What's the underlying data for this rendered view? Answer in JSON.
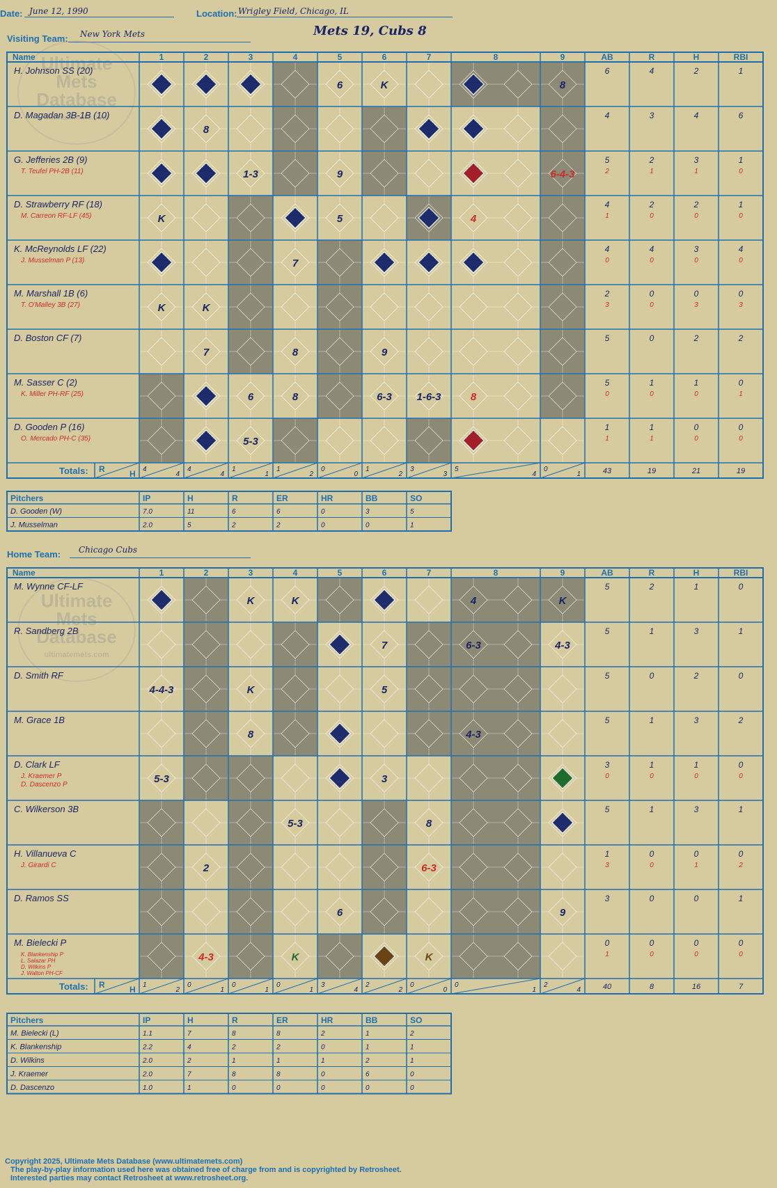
{
  "header": {
    "date_label": "Date:",
    "date": "June 12, 1990",
    "location_label": "Location:",
    "location": "Wrigley Field, Chicago, IL",
    "visiting_label": "Visiting Team:",
    "visiting_team": "New York Mets",
    "score_title": "Mets 19, Cubs 8",
    "home_label": "Home Team:",
    "home_team": "Chicago Cubs"
  },
  "watermark": {
    "line1": "Ultimate",
    "line2": "Mets",
    "line3": "Database",
    "line4": "ultimatemets.com"
  },
  "columns": {
    "name": "Name",
    "innings": [
      "1",
      "2",
      "3",
      "4",
      "5",
      "6",
      "7",
      "8",
      "9"
    ],
    "stats": [
      "AB",
      "R",
      "H",
      "RBI"
    ],
    "totals": "Totals:",
    "r": "R",
    "h": "H"
  },
  "pitcher_columns": [
    "Pitchers",
    "IP",
    "H",
    "R",
    "ER",
    "HR",
    "BB",
    "SO"
  ],
  "visiting": {
    "batters": [
      {
        "name": "H. Johnson SS (20)",
        "sub": "",
        "stats": [
          "6",
          "4",
          "2",
          "1"
        ],
        "sub_stats": [
          "",
          "",
          "",
          ""
        ]
      },
      {
        "name": "D. Magadan 3B-1B (10)",
        "sub": "",
        "stats": [
          "4",
          "3",
          "4",
          "6"
        ],
        "sub_stats": [
          "",
          "",
          "",
          ""
        ]
      },
      {
        "name": "G. Jefferies 2B (9)",
        "sub": "T. Teufel PH-2B (11)",
        "stats": [
          "5",
          "2",
          "3",
          "1"
        ],
        "sub_stats": [
          "2",
          "1",
          "1",
          "0"
        ]
      },
      {
        "name": "D. Strawberry RF (18)",
        "sub": "M. Carreon RF-LF (45)",
        "stats": [
          "4",
          "2",
          "2",
          "1"
        ],
        "sub_stats": [
          "1",
          "0",
          "0",
          "0"
        ]
      },
      {
        "name": "K. McReynolds LF (22)",
        "sub": "J. Musselman P (13)",
        "stats": [
          "4",
          "4",
          "3",
          "4"
        ],
        "sub_stats": [
          "0",
          "0",
          "0",
          "0"
        ]
      },
      {
        "name": "M. Marshall 1B (6)",
        "sub": "T. O'Malley 3B (27)",
        "stats": [
          "2",
          "0",
          "0",
          "0"
        ],
        "sub_stats": [
          "3",
          "0",
          "3",
          "3"
        ]
      },
      {
        "name": "D. Boston CF (7)",
        "sub": "",
        "stats": [
          "5",
          "0",
          "2",
          "2"
        ],
        "sub_stats": [
          "",
          "",
          "",
          ""
        ]
      },
      {
        "name": "M. Sasser C (2)",
        "sub": "K. Miller PH-RF (25)",
        "stats": [
          "5",
          "1",
          "1",
          "0"
        ],
        "sub_stats": [
          "0",
          "0",
          "0",
          "1"
        ]
      },
      {
        "name": "D. Gooden P (16)",
        "sub": "O. Mercado PH-C (35)",
        "stats": [
          "1",
          "1",
          "0",
          "0"
        ],
        "sub_stats": [
          "1",
          "1",
          "0",
          "0"
        ]
      }
    ],
    "totals": {
      "innings": [
        [
          "4",
          "4"
        ],
        [
          "4",
          "4"
        ],
        [
          "1",
          "1"
        ],
        [
          "1",
          "2"
        ],
        [
          "0",
          "0"
        ],
        [
          "1",
          "2"
        ],
        [
          "3",
          "3"
        ],
        [
          "5",
          "4"
        ],
        [
          "0",
          "1"
        ]
      ],
      "stats": [
        "43",
        "19",
        "21",
        "19"
      ]
    },
    "pitchers": [
      {
        "name": "D. Gooden (W)",
        "line": [
          "7.0",
          "11",
          "6",
          "6",
          "0",
          "3",
          "5"
        ]
      },
      {
        "name": "J. Musselman",
        "line": [
          "2.0",
          "5",
          "2",
          "2",
          "0",
          "0",
          "1"
        ]
      }
    ]
  },
  "home": {
    "batters": [
      {
        "name": "M. Wynne CF-LF",
        "sub": "",
        "stats": [
          "5",
          "2",
          "1",
          "0"
        ],
        "sub_stats": [
          "",
          "",
          "",
          ""
        ]
      },
      {
        "name": "R. Sandberg 2B",
        "sub": "",
        "stats": [
          "5",
          "1",
          "3",
          "1"
        ],
        "sub_stats": [
          "",
          "",
          "",
          ""
        ]
      },
      {
        "name": "D. Smith RF",
        "sub": "",
        "stats": [
          "5",
          "0",
          "2",
          "0"
        ],
        "sub_stats": [
          "",
          "",
          "",
          ""
        ]
      },
      {
        "name": "M. Grace 1B",
        "sub": "",
        "stats": [
          "5",
          "1",
          "3",
          "2"
        ],
        "sub_stats": [
          "",
          "",
          "",
          ""
        ]
      },
      {
        "name": "D. Clark LF",
        "sub": "J. Kraemer P",
        "sub2": "D. Dascenzo P",
        "stats": [
          "3",
          "1",
          "1",
          "0"
        ],
        "sub_stats": [
          "0",
          "0",
          "0",
          "0"
        ]
      },
      {
        "name": "C. Wilkerson 3B",
        "sub": "",
        "stats": [
          "5",
          "1",
          "3",
          "1"
        ],
        "sub_stats": [
          "",
          "",
          "",
          ""
        ]
      },
      {
        "name": "H. Villanueva C",
        "sub": "J. Girardi C",
        "stats": [
          "1",
          "0",
          "0",
          "0"
        ],
        "sub_stats": [
          "3",
          "0",
          "1",
          "2"
        ]
      },
      {
        "name": "D. Ramos SS",
        "sub": "",
        "stats": [
          "3",
          "0",
          "0",
          "1"
        ],
        "sub_stats": [
          "",
          "",
          "",
          ""
        ]
      },
      {
        "name": "M. Bielecki P",
        "sub": "K. Blankenship P",
        "sub2": "L. Salazar PH",
        "sub3": "D. Wilkins P",
        "sub4": "J. Walton PH-CF",
        "stats": [
          "0",
          "0",
          "0",
          "0"
        ],
        "sub_stats": [
          "1",
          "0",
          "0",
          "0"
        ]
      }
    ],
    "totals": {
      "innings": [
        [
          "1",
          "2"
        ],
        [
          "0",
          "1"
        ],
        [
          "0",
          "1"
        ],
        [
          "0",
          "1"
        ],
        [
          "3",
          "4"
        ],
        [
          "2",
          "2"
        ],
        [
          "0",
          "0"
        ],
        [
          "0",
          "1"
        ],
        [
          "2",
          "4"
        ]
      ],
      "stats": [
        "40",
        "8",
        "16",
        "7"
      ]
    },
    "pitchers": [
      {
        "name": "M. Bielecki (L)",
        "line": [
          "1.1",
          "7",
          "8",
          "8",
          "2",
          "1",
          "2"
        ]
      },
      {
        "name": "K. Blankenship",
        "line": [
          "2.2",
          "4",
          "2",
          "2",
          "0",
          "1",
          "1"
        ]
      },
      {
        "name": "D. Wilkins",
        "line": [
          "2.0",
          "2",
          "1",
          "1",
          "1",
          "2",
          "1"
        ]
      },
      {
        "name": "J. Kraemer",
        "line": [
          "2.0",
          "7",
          "8",
          "8",
          "0",
          "6",
          "0"
        ]
      },
      {
        "name": "D. Dascenzo",
        "line": [
          "1.0",
          "1",
          "0",
          "0",
          "0",
          "0",
          "0"
        ]
      }
    ]
  },
  "colors": {
    "background": "#d6cb9e",
    "grid": "#1e6fb0",
    "shade": "#8c8a74",
    "ink": "#1a2466",
    "run": "#1f2c6b",
    "red": "#cc2b2b"
  },
  "footer": {
    "line1": "Copyright 2025, Ultimate Mets Database (www.ultimatemets.com)",
    "line2": "The play-by-play information used here was obtained free of charge from and is copyrighted by Retrosheet.",
    "line3": "Interested parties may contact Retrosheet at www.retrosheet.org."
  }
}
